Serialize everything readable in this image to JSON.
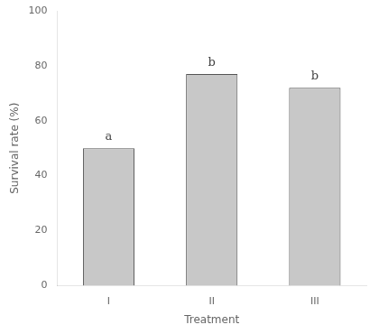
{
  "chart_data": {
    "type": "bar",
    "categories": [
      "I",
      "II",
      "III"
    ],
    "values": [
      50,
      77,
      72
    ],
    "color": "#c8c8c8",
    "xlabel": "Treatment",
    "ylabel": "Survival rate (%)",
    "ylim": [
      0,
      100
    ],
    "yticks": [
      0,
      20,
      40,
      60,
      80,
      100
    ],
    "annotations": [
      "a",
      "b",
      "b"
    ],
    "grid": false
  }
}
